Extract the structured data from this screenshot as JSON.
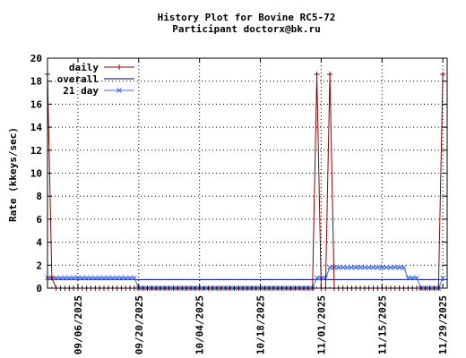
{
  "chart_data": {
    "type": "line",
    "title": "History Plot for Bovine RC5-72",
    "subtitle": "Participant doctorx@bk.ru",
    "ylabel": "Rate (kkeys/sec)",
    "xlabel": "",
    "ylim": [
      0,
      20
    ],
    "yticks": [
      0,
      2,
      4,
      6,
      8,
      10,
      12,
      14,
      16,
      18,
      20
    ],
    "x_range": [
      "2025-08-30",
      "2025-11-30"
    ],
    "x_ticks": [
      {
        "date": "2025-09-06",
        "label": "09/06/2025"
      },
      {
        "date": "2025-09-20",
        "label": "09/20/2025"
      },
      {
        "date": "2025-10-04",
        "label": "10/04/2025"
      },
      {
        "date": "2025-10-18",
        "label": "10/18/2025"
      },
      {
        "date": "2025-11-01",
        "label": "11/01/2025"
      },
      {
        "date": "2025-11-15",
        "label": "11/15/2025"
      },
      {
        "date": "2025-11-29",
        "label": "11/29/2025"
      }
    ],
    "grid": true,
    "legend_position": "top-left",
    "series": [
      {
        "name": "daily",
        "color": "#8b0000",
        "marker": "plus",
        "points": [
          {
            "x": "2025-08-30",
            "y": 18.6
          },
          {
            "x": "2025-08-31",
            "y": 0.9
          },
          {
            "x": "2025-09-01",
            "y": 0
          },
          {
            "x": "2025-10-30",
            "y": 0
          },
          {
            "x": "2025-10-31",
            "y": 18.6
          },
          {
            "x": "2025-11-01",
            "y": 0
          },
          {
            "x": "2025-11-02",
            "y": 0
          },
          {
            "x": "2025-11-03",
            "y": 18.6
          },
          {
            "x": "2025-11-04",
            "y": 0
          },
          {
            "x": "2025-11-28",
            "y": 0
          },
          {
            "x": "2025-11-29",
            "y": 18.6
          }
        ]
      },
      {
        "name": "overall",
        "color": "#00008b",
        "marker": "none",
        "points": [
          {
            "x": "2025-08-30",
            "y": 0.75
          },
          {
            "x": "2025-11-30",
            "y": 0.75
          }
        ]
      },
      {
        "name": "21 day",
        "color": "#4169e1",
        "marker": "x",
        "points": [
          {
            "x": "2025-08-30",
            "y": 0.9
          },
          {
            "x": "2025-09-19",
            "y": 0.9
          },
          {
            "x": "2025-09-20",
            "y": 0
          },
          {
            "x": "2025-10-30",
            "y": 0
          },
          {
            "x": "2025-10-31",
            "y": 0.9
          },
          {
            "x": "2025-11-02",
            "y": 0.9
          },
          {
            "x": "2025-11-03",
            "y": 1.8
          },
          {
            "x": "2025-11-20",
            "y": 1.8
          },
          {
            "x": "2025-11-21",
            "y": 0.9
          },
          {
            "x": "2025-11-23",
            "y": 0.9
          },
          {
            "x": "2025-11-24",
            "y": 0
          },
          {
            "x": "2025-11-28",
            "y": 0
          },
          {
            "x": "2025-11-29",
            "y": 0.9
          }
        ]
      }
    ]
  }
}
